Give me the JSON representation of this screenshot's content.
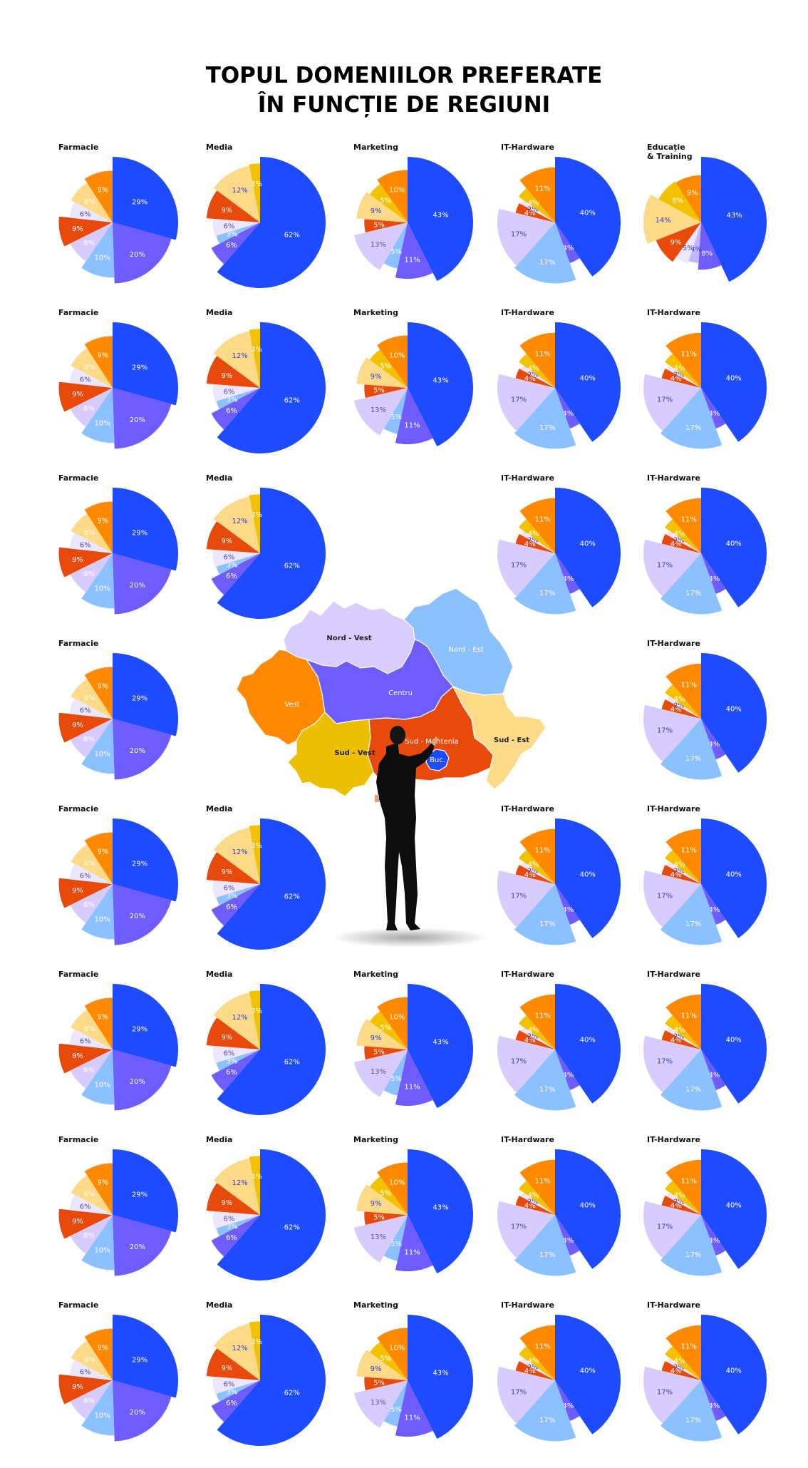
{
  "title": {
    "line1": "TOPUL DOMENIILOR PREFERATE",
    "line2": "ÎN FUNCȚIE DE REGIUNI"
  },
  "colors": {
    "blue": "#1f4bff",
    "violet": "#6f5cff",
    "sky": "#8cc1ff",
    "lilac": "#d8ccff",
    "pale_lilac": "#ede6ff",
    "lavender": "#c4b7ff",
    "red": "#e84a0c",
    "gold": "#f2c200",
    "cream": "#fcda87",
    "orange": "#ff8a00"
  },
  "charts": {
    "farmacie": {
      "label": "Farmacie",
      "slices": [
        {
          "value": 29,
          "label": "29%",
          "color": "blue",
          "radius": 1.0,
          "text": "#ffffff"
        },
        {
          "value": 20,
          "label": "20%",
          "color": "violet",
          "radius": 0.93,
          "text": "#ffffff"
        },
        {
          "value": 10,
          "label": "10%",
          "color": "sky",
          "radius": 0.84,
          "text": "#ffffff"
        },
        {
          "value": 8,
          "label": "8%",
          "color": "lilac",
          "radius": 0.72,
          "text": "#ffffff"
        },
        {
          "value": 9,
          "label": "9%",
          "color": "red",
          "radius": 0.82,
          "text": "#ffffff"
        },
        {
          "value": 6,
          "label": "6%",
          "color": "pale_lilac",
          "radius": 0.66,
          "text": "#5b4fa8"
        },
        {
          "value": 8,
          "label": "8%",
          "color": "cream",
          "radius": 0.72,
          "text": "#ffffff"
        },
        {
          "value": 9,
          "label": "9%",
          "color": "orange",
          "radius": 0.79,
          "text": "#ffffff"
        }
      ]
    },
    "media": {
      "label": "Media",
      "slices": [
        {
          "value": 62,
          "label": "62%",
          "color": "blue",
          "radius": 1.0,
          "text": "#ffffff"
        },
        {
          "value": 6,
          "label": "6%",
          "color": "violet",
          "radius": 0.84,
          "text": "#ffffff"
        },
        {
          "value": 3,
          "label": "3%",
          "color": "sky",
          "radius": 0.7,
          "text": "#ffffff"
        },
        {
          "value": 6,
          "label": "6%",
          "color": "pale_lilac",
          "radius": 0.72,
          "text": "#5b4fa8"
        },
        {
          "value": 9,
          "label": "9%",
          "color": "red",
          "radius": 0.82,
          "text": "#ffffff"
        },
        {
          "value": 12,
          "label": "12%",
          "color": "cream",
          "radius": 0.88,
          "text": "#3540c0"
        },
        {
          "value": 3,
          "label": "3%",
          "color": "gold",
          "radius": 0.9,
          "text": "#ffffff"
        }
      ]
    },
    "marketing": {
      "label": "Marketing",
      "slices": [
        {
          "value": 43,
          "label": "43%",
          "color": "blue",
          "radius": 1.0,
          "text": "#ffffff"
        },
        {
          "value": 11,
          "label": "11%",
          "color": "violet",
          "radius": 0.86,
          "text": "#ffffff"
        },
        {
          "value": 5,
          "label": "5%",
          "color": "sky",
          "radius": 0.72,
          "text": "#ffffff"
        },
        {
          "value": 13,
          "label": "13%",
          "color": "lilac",
          "radius": 0.84,
          "text": "#5b4fa8"
        },
        {
          "value": 5,
          "label": "5%",
          "color": "red",
          "radius": 0.66,
          "text": "#ffffff"
        },
        {
          "value": 9,
          "label": "9%",
          "color": "cream",
          "radius": 0.78,
          "text": "#3540c0"
        },
        {
          "value": 5,
          "label": "5%",
          "color": "gold",
          "radius": 0.72,
          "text": "#ffffff"
        },
        {
          "value": 10,
          "label": "10%",
          "color": "orange",
          "radius": 0.8,
          "text": "#ffffff"
        }
      ]
    },
    "it_hardware": {
      "label": "IT-Hardware",
      "slices": [
        {
          "value": 40,
          "label": "40%",
          "color": "blue",
          "radius": 1.0,
          "text": "#ffffff"
        },
        {
          "value": 4,
          "label": "4%",
          "color": "violet",
          "radius": 0.66,
          "text": "#ffffff"
        },
        {
          "value": 17,
          "label": "17%",
          "color": "sky",
          "radius": 0.93,
          "text": "#ffffff"
        },
        {
          "value": 17,
          "label": "17%",
          "color": "lilac",
          "radius": 0.88,
          "text": "#3540c0"
        },
        {
          "value": 4,
          "label": "4%",
          "color": "red",
          "radius": 0.62,
          "text": "#ffffff"
        },
        {
          "value": 2,
          "label": "2%",
          "color": "pale_lilac",
          "radius": 0.6,
          "text": "#3540c0"
        },
        {
          "value": 4,
          "label": "4%",
          "color": "gold",
          "radius": 0.68,
          "text": "#ffffff"
        },
        {
          "value": 11,
          "label": "11%",
          "color": "orange",
          "radius": 0.84,
          "text": "#ffffff"
        }
      ]
    },
    "educatie": {
      "label": "Educație\n& Training",
      "slices": [
        {
          "value": 43,
          "label": "43%",
          "color": "blue",
          "radius": 1.0,
          "text": "#ffffff"
        },
        {
          "value": 8,
          "label": "8%",
          "color": "violet",
          "radius": 0.72,
          "text": "#ffffff"
        },
        {
          "value": 4,
          "label": "4%",
          "color": "lavender",
          "radius": 0.62,
          "text": "#3540c0"
        },
        {
          "value": 5,
          "label": "5%",
          "color": "pale_lilac",
          "radius": 0.66,
          "text": "#3540c0"
        },
        {
          "value": 9,
          "label": "9%",
          "color": "red",
          "radius": 0.74,
          "text": "#ffffff"
        },
        {
          "value": 14,
          "label": "14%",
          "color": "cream",
          "radius": 0.88,
          "text": "#3540c0"
        },
        {
          "value": 8,
          "label": "8%",
          "color": "gold",
          "radius": 0.74,
          "text": "#ffffff"
        },
        {
          "value": 9,
          "label": "9%",
          "color": "orange",
          "radius": 0.72,
          "text": "#ffffff"
        }
      ]
    }
  },
  "grid": [
    [
      "farmacie",
      "media",
      "marketing",
      "it_hardware",
      "educatie"
    ],
    [
      "farmacie",
      "media",
      "marketing",
      "it_hardware",
      "it_hardware"
    ],
    [
      "farmacie",
      "media",
      null,
      "it_hardware",
      "it_hardware"
    ],
    [
      "farmacie",
      null,
      null,
      null,
      "it_hardware"
    ],
    [
      "farmacie",
      "media",
      null,
      "it_hardware",
      "it_hardware"
    ],
    [
      "farmacie",
      "media",
      "marketing",
      "it_hardware",
      "it_hardware"
    ],
    [
      "farmacie",
      "media",
      "marketing",
      "it_hardware",
      "it_hardware"
    ],
    [
      "farmacie",
      "media",
      "marketing",
      "it_hardware",
      "it_hardware"
    ]
  ],
  "map": {
    "regions": [
      {
        "id": "nord-vest",
        "label": "Nord - Vest",
        "color": "#d9ccff",
        "text": "#222222"
      },
      {
        "id": "nord-est",
        "label": "Nord - Est",
        "color": "#8cc1ff",
        "text": "#ffffff"
      },
      {
        "id": "vest",
        "label": "Vest",
        "color": "#ff8a00",
        "text": "#ffffff"
      },
      {
        "id": "centru",
        "label": "Centru",
        "color": "#6f5cff",
        "text": "#ffffff"
      },
      {
        "id": "sud-vest",
        "label": "Sud - Vest",
        "color": "#ecc000",
        "text": "#222222"
      },
      {
        "id": "sud-muntenia",
        "label": "Sud - Muntenia",
        "color": "#e84a0c",
        "text": "#ffffff"
      },
      {
        "id": "sud-est",
        "label": "Sud - Est",
        "color": "#fcda87",
        "text": "#222222"
      },
      {
        "id": "bucuresti",
        "label": "Buc.",
        "color": "#1f4bff",
        "text": "#ffffff"
      }
    ]
  }
}
